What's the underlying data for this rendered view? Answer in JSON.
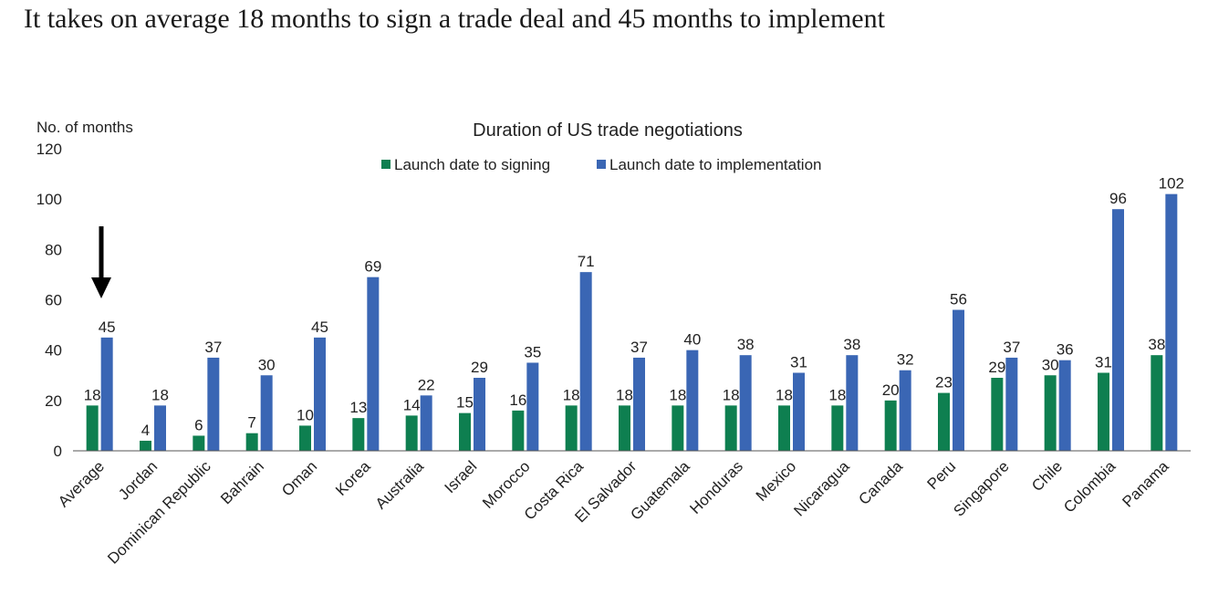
{
  "headline": "It takes on average 18 months to sign a trade deal and 45 months to implement",
  "colors": {
    "signing": "#0e7f50",
    "implementation": "#3a66b4",
    "axis": "#555555",
    "arrow": "#000000"
  },
  "chart_data": {
    "type": "bar",
    "title": "Duration of US trade negotiations",
    "xlabel": "",
    "ylabel": "No. of months",
    "ylim": [
      0,
      120
    ],
    "yticks": [
      0,
      20,
      40,
      60,
      80,
      100,
      120
    ],
    "grid": false,
    "legend": "top-center",
    "categories": [
      "Average",
      "Jordan",
      "Dominican Republic",
      "Bahrain",
      "Oman",
      "Korea",
      "Australia",
      "Israel",
      "Morocco",
      "Costa Rica",
      "El Salvador",
      "Guatemala",
      "Honduras",
      "Mexico",
      "Nicaragua",
      "Canada",
      "Peru",
      "Singapore",
      "Chile",
      "Colombia",
      "Panama"
    ],
    "series": [
      {
        "name": "Launch date to signing",
        "values": [
          18,
          4,
          6,
          7,
          10,
          13,
          14,
          15,
          16,
          18,
          18,
          18,
          18,
          18,
          18,
          20,
          23,
          29,
          30,
          31,
          38
        ]
      },
      {
        "name": "Launch date to implementation",
        "values": [
          45,
          18,
          37,
          30,
          45,
          69,
          22,
          29,
          35,
          71,
          37,
          40,
          38,
          31,
          38,
          32,
          56,
          37,
          36,
          96,
          102
        ]
      }
    ],
    "annotations": [
      {
        "type": "arrow",
        "target": "Average",
        "direction": "down"
      }
    ]
  }
}
